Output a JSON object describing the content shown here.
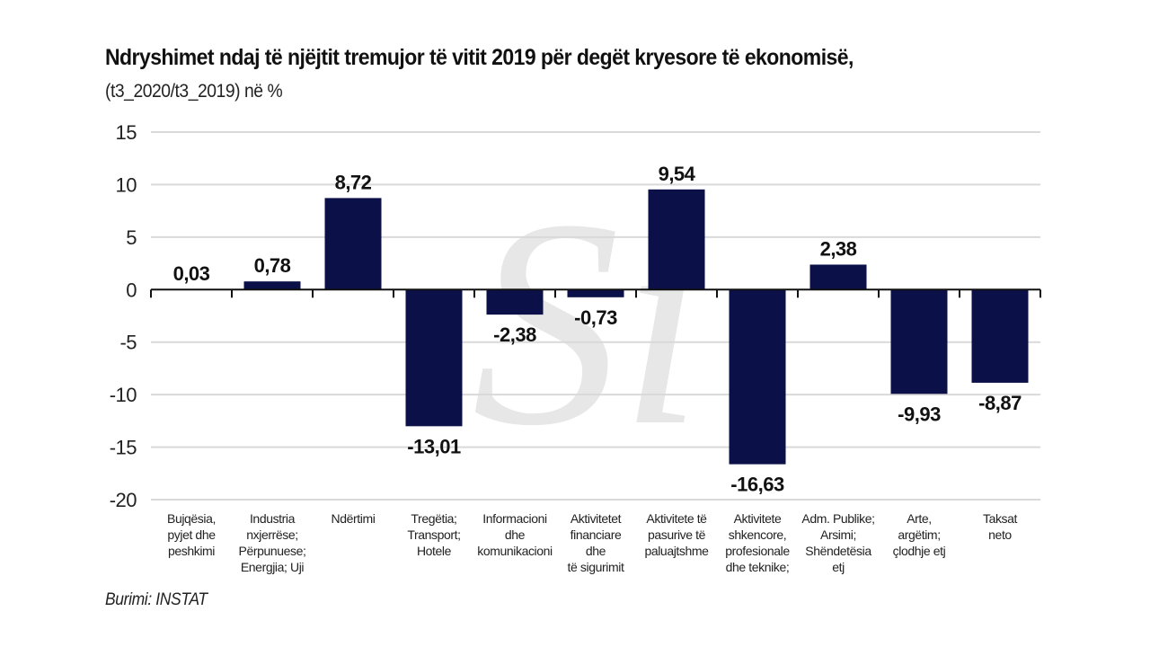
{
  "chart_data": {
    "type": "bar",
    "title": "Ndryshimet ndaj të njëjtit tremujor të vitit 2019 për degët kryesore të ekonomisë,",
    "subtitle": "(t3_2020/t3_2019) në %",
    "xlabel": "",
    "ylabel": "",
    "ylim": [
      -20,
      15
    ],
    "yticks": [
      15,
      10,
      5,
      0,
      -5,
      -10,
      -15,
      -20
    ],
    "grid": true,
    "legend": "none",
    "categories": [
      [
        "Bujqësia,",
        "pyjet dhe",
        "peshkimi"
      ],
      [
        "Industria",
        "nxjerrëse;",
        "Përpunuese;",
        "Energjia; Uji"
      ],
      [
        "Ndërtimi"
      ],
      [
        "Tregëtia;",
        "Transport;",
        "Hotele"
      ],
      [
        "Informacioni",
        "dhe",
        "komunikacioni"
      ],
      [
        "Aktivitetet",
        "financiare",
        "dhe",
        "të sigurimit"
      ],
      [
        "Aktivitete të",
        "pasurive të",
        "paluajtshme"
      ],
      [
        "Aktivitete",
        "shkencore,",
        "profesionale",
        "dhe teknike;"
      ],
      [
        "Adm. Publike;",
        "Arsimi;",
        "Shëndetësia",
        "etj"
      ],
      [
        "Arte,",
        "argëtim;",
        "çlodhje etj"
      ],
      [
        "Taksat",
        "neto"
      ]
    ],
    "values": [
      0.03,
      0.78,
      8.72,
      -13.01,
      -2.38,
      -0.73,
      9.54,
      -16.63,
      2.38,
      -9.93,
      -8.87
    ],
    "data_labels": [
      "0,03",
      "0,78",
      "8,72",
      "-13,01",
      "-2,38",
      "-0,73",
      "9,54",
      "-16,63",
      "2,38",
      "-9,93",
      "-8,87"
    ],
    "bar_color": "#0b1048",
    "source": "Burimi: INSTAT",
    "watermark": "Si"
  }
}
